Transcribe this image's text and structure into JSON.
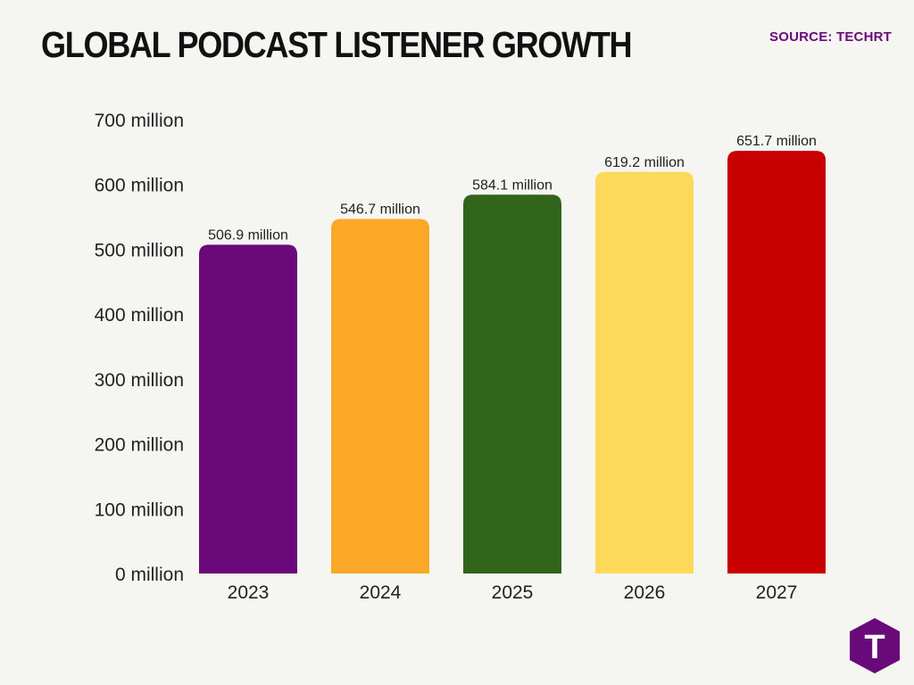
{
  "header": {
    "title": "GLOBAL PODCAST LISTENER GROWTH",
    "source": "SOURCE: TECHRT"
  },
  "logo": {
    "glyph": "T",
    "icon": "techrt-logo-icon",
    "color": "#6a0a7a"
  },
  "chart_data": {
    "type": "bar",
    "categories": [
      "2023",
      "2024",
      "2025",
      "2026",
      "2027"
    ],
    "values": [
      506.9,
      546.7,
      584.1,
      619.2,
      651.7
    ],
    "data_labels": [
      "506.9 million",
      "546.7 million",
      "584.1 million",
      "619.2 million",
      "651.7 million"
    ],
    "colors": [
      "#6a0a7a",
      "#fba828",
      "#32651c",
      "#fdd95a",
      "#c90000"
    ],
    "title": "GLOBAL PODCAST LISTENER GROWTH",
    "ylim": [
      0,
      700
    ],
    "y_ticks": [
      0,
      100,
      200,
      300,
      400,
      500,
      600,
      700
    ],
    "y_tick_labels": [
      "0 million",
      "100 million",
      "200 million",
      "300 million",
      "400 million",
      "500 million",
      "600 million",
      "700 million"
    ],
    "grid": false,
    "legend": "none"
  }
}
